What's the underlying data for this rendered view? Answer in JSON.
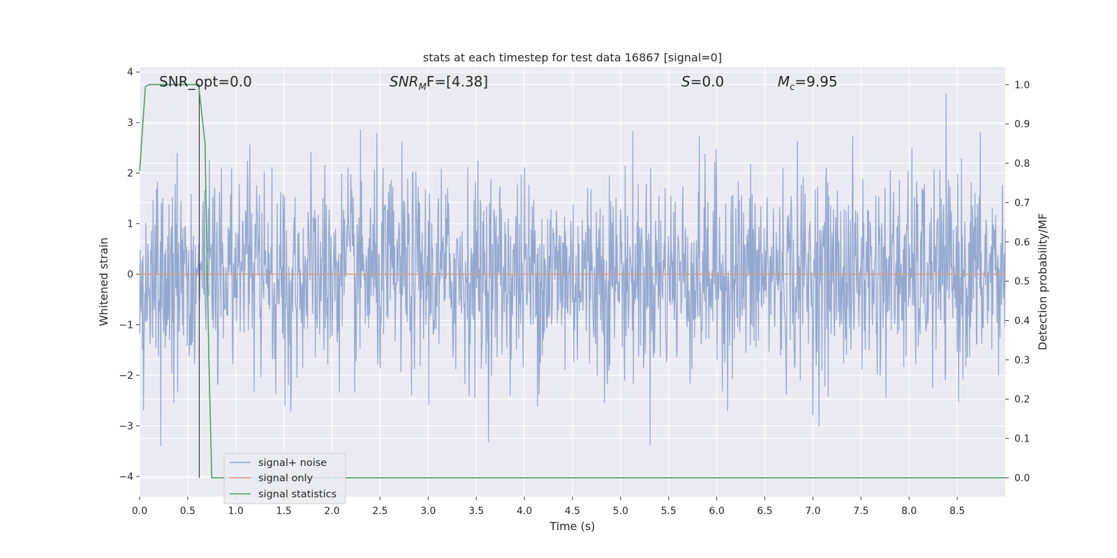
{
  "chart_data": {
    "type": "line",
    "title": "stats at each timestep for test data 16867 [signal=0]",
    "xlabel": "Time (s)",
    "ylabel": "Whitened strain",
    "ylabel_right": "Detection probability/MF",
    "xlim": [
      0.0,
      9.0
    ],
    "ylim": [
      -4.4,
      4.1
    ],
    "ylim_right": [
      -0.048,
      1.045
    ],
    "x_ticks": [
      "0.0",
      "0.5",
      "1.0",
      "1.5",
      "2.0",
      "2.5",
      "3.0",
      "3.5",
      "4.0",
      "4.5",
      "5.0",
      "5.5",
      "6.0",
      "6.5",
      "7.0",
      "7.5",
      "8.0",
      "8.5"
    ],
    "y_ticks": [
      "4",
      "3",
      "2",
      "1",
      "0",
      "−1",
      "−2",
      "−3",
      "−4"
    ],
    "y_tick_values": [
      4,
      3,
      2,
      1,
      0,
      -1,
      -2,
      -3,
      -4
    ],
    "y_ticks_right": [
      "1.0",
      "0.9",
      "0.8",
      "0.7",
      "0.6",
      "0.5",
      "0.4",
      "0.3",
      "0.2",
      "0.1",
      "0.0"
    ],
    "y_tick_values_right": [
      1.0,
      0.9,
      0.8,
      0.7,
      0.6,
      0.5,
      0.4,
      0.3,
      0.2,
      0.1,
      0.0
    ],
    "grid": true,
    "legend_position": "lower-left",
    "annotations": {
      "snr_opt": "SNR_opt=0.0",
      "snr_mf_prefix": "SNR",
      "snr_mf_sub": "M",
      "snr_mf_suffix": "F=[4.38]",
      "s_var": "S",
      "s_value": "=0.0",
      "mc_var": "M",
      "mc_sub": "c",
      "mc_value": "=9.95"
    },
    "marker_line_x": 0.62,
    "series": [
      {
        "name": "signal+ noise",
        "color": "#8fa4cc",
        "noise": {
          "count": 1800,
          "amplitude_std": 1.0,
          "typical_range": [
            -3.4,
            3.9
          ]
        }
      },
      {
        "name": "signal only",
        "color": "#dd9c7a",
        "x": [
          0.0,
          9.0
        ],
        "y": [
          0.0,
          0.0
        ]
      },
      {
        "name": "signal statistics",
        "color": "#4aa05c",
        "axis": "right",
        "x": [
          0.0,
          0.06,
          0.1,
          0.15,
          0.3,
          0.5,
          0.61,
          0.62,
          0.68,
          0.72,
          0.75,
          9.0
        ],
        "y": [
          0.78,
          0.995,
          1.0,
          1.0,
          1.0,
          1.0,
          1.0,
          0.985,
          0.85,
          0.3,
          0.0,
          0.0
        ]
      }
    ]
  }
}
